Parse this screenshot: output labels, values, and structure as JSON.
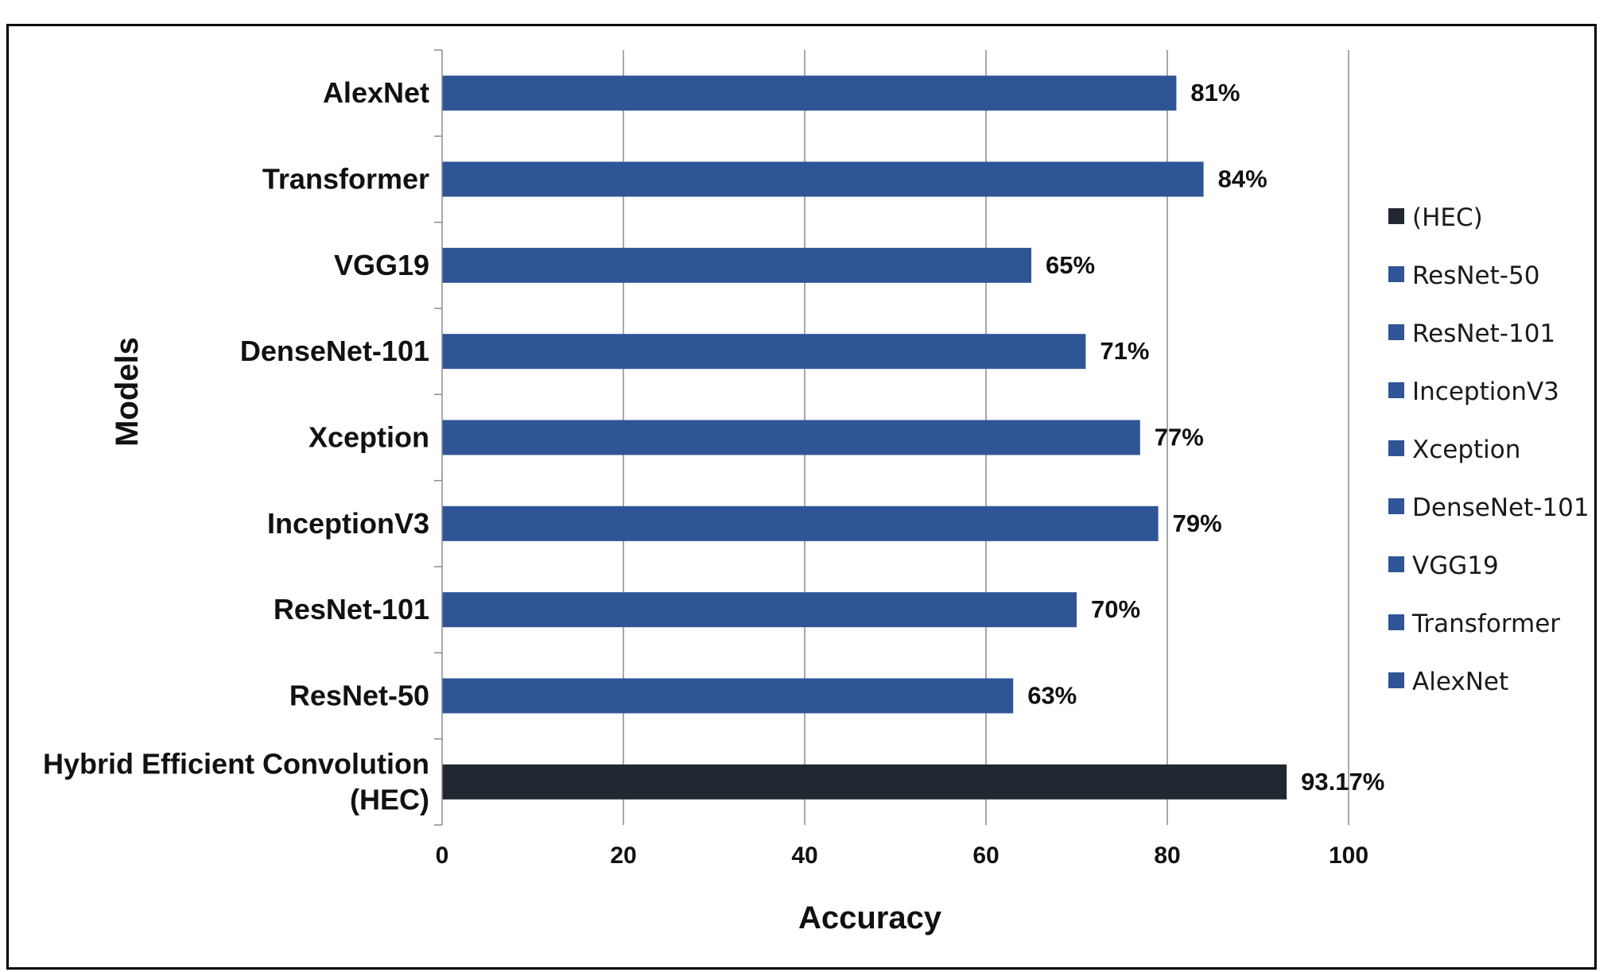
{
  "chart_data": {
    "type": "bar",
    "orientation": "horizontal",
    "title": "",
    "xlabel": "Accuracy",
    "ylabel": "Models",
    "xlim": [
      0,
      100
    ],
    "x_ticks": [
      "0",
      "20",
      "40",
      "60",
      "80",
      "100"
    ],
    "grid": true,
    "legend_position": "right",
    "categories": [
      "AlexNet",
      "Transformer",
      "VGG19",
      "DenseNet-101",
      "Xception",
      "InceptionV3",
      "ResNet-101",
      "ResNet-50",
      "Hybrid Efficient Convolution (HEC)"
    ],
    "category_label_lines": [
      [
        "AlexNet"
      ],
      [
        "Transformer"
      ],
      [
        "VGG19"
      ],
      [
        "DenseNet-101"
      ],
      [
        "Xception"
      ],
      [
        "InceptionV3"
      ],
      [
        "ResNet-101"
      ],
      [
        "ResNet-50"
      ],
      [
        "Hybrid Efficient Convolution",
        "(HEC)"
      ]
    ],
    "values": [
      81,
      84,
      65,
      71,
      77,
      79,
      70,
      63,
      93.17
    ],
    "data_labels": [
      "81%",
      "84%",
      "65%",
      "71%",
      "77%",
      "79%",
      "70%",
      "63%",
      "93.17%"
    ],
    "bar_colors": [
      "#2f5597",
      "#2f5597",
      "#2f5597",
      "#2f5597",
      "#2f5597",
      "#2f5597",
      "#2f5597",
      "#2f5597",
      "#222831"
    ],
    "legend": [
      {
        "label": "(HEC)",
        "color": "#222831"
      },
      {
        "label": "ResNet-50",
        "color": "#2f5597"
      },
      {
        "label": "ResNet-101",
        "color": "#2f5597"
      },
      {
        "label": "InceptionV3",
        "color": "#2f5597"
      },
      {
        "label": "Xception",
        "color": "#2f5597"
      },
      {
        "label": "DenseNet-101",
        "color": "#2f5597"
      },
      {
        "label": "VGG19",
        "color": "#2f5597"
      },
      {
        "label": "Transformer",
        "color": "#2f5597"
      },
      {
        "label": "AlexNet",
        "color": "#2f5597"
      }
    ]
  }
}
